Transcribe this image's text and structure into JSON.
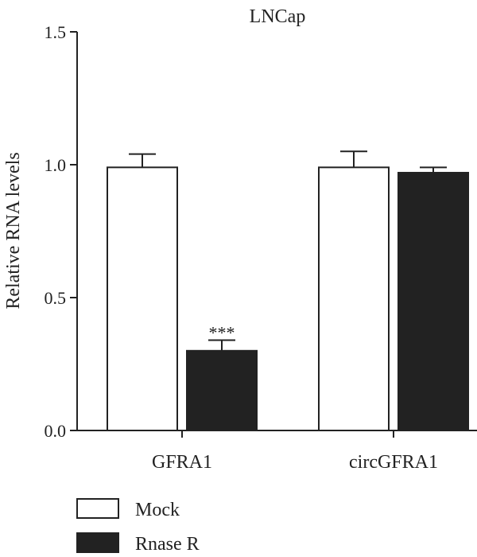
{
  "chart_data": {
    "type": "bar",
    "title": "LNCap",
    "xlabel": "",
    "ylabel": "Relative RNA levels",
    "ylim": [
      0,
      1.5
    ],
    "yticks": [
      "0.0",
      "0.5",
      "1.0",
      "1.5"
    ],
    "categories": [
      "GFRA1",
      "circGFRA1"
    ],
    "series": [
      {
        "name": "Mock",
        "values": [
          0.99,
          0.99
        ],
        "errors": [
          0.05,
          0.06
        ],
        "fill": "#ffffff"
      },
      {
        "name": "Rnase R",
        "values": [
          0.3,
          0.97
        ],
        "errors": [
          0.04,
          0.02
        ],
        "fill": "#222222"
      }
    ],
    "annotations": [
      {
        "text": "***",
        "category": "GFRA1",
        "series": "Rnase R"
      }
    ],
    "grid": false,
    "legend_position": "bottom-left"
  }
}
